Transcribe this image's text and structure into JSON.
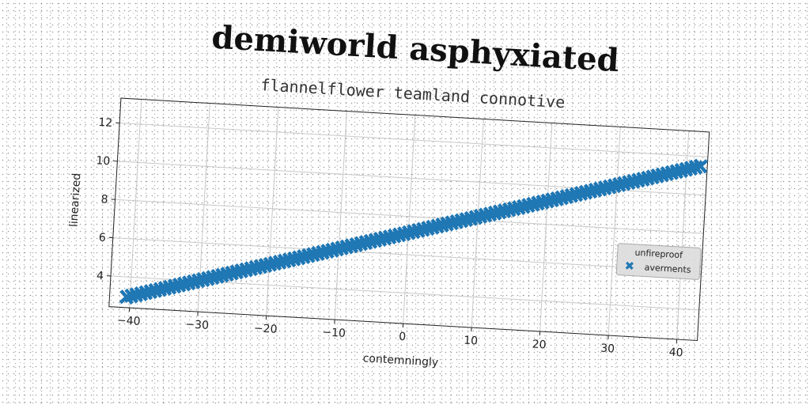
{
  "chart_data": {
    "type": "scatter",
    "title": "demiworld asphyxiated",
    "subtitle": "flannelflower teamland connotive",
    "xlabel": "contemningly",
    "ylabel": "linearized",
    "xlim": [
      -43,
      43
    ],
    "ylim": [
      2.4,
      13.3
    ],
    "xticks": [
      -40,
      -30,
      -20,
      -10,
      0,
      10,
      20,
      30,
      40
    ],
    "yticks": [
      4,
      6,
      8,
      10,
      12
    ],
    "grid": true,
    "legend": {
      "title": "unfireproof",
      "placement": "center-right",
      "entries": [
        "averments"
      ]
    },
    "series": [
      {
        "name": "averments",
        "marker": "X",
        "color": "#1f77b4",
        "x_range": [
          -40.5,
          42
        ],
        "y_range": [
          2.95,
          11.5
        ],
        "num_points": 121
      }
    ]
  }
}
